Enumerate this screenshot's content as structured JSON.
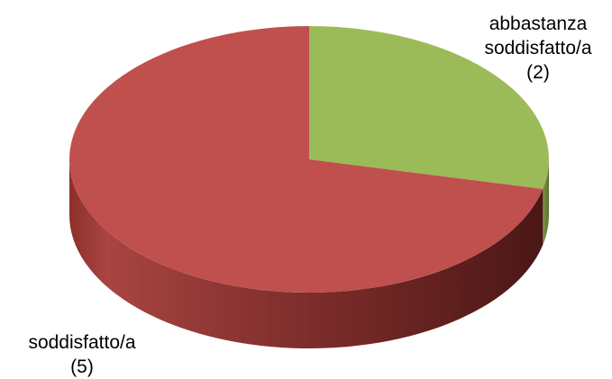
{
  "chart_data": {
    "type": "pie",
    "style": "3d",
    "title": "",
    "categories": [
      "abbastanza soddisfatto/a",
      "soddisfatto/a"
    ],
    "values": [
      2,
      5
    ],
    "colors": [
      "#9BBB59",
      "#C0504D"
    ],
    "labels": [
      {
        "lines": [
          "abbastanza",
          "soddisfatto/a",
          "(2)"
        ]
      },
      {
        "lines": [
          "soddisfatto/a",
          "(5)"
        ]
      }
    ],
    "legend": "none"
  }
}
